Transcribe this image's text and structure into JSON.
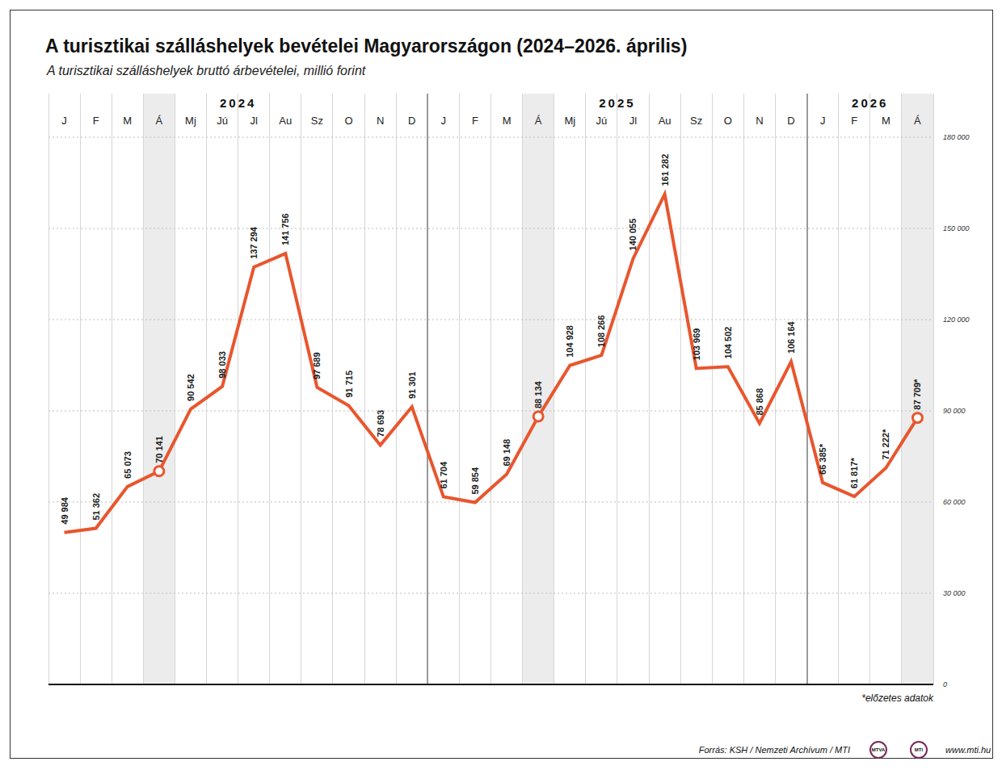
{
  "chart_data": {
    "type": "line",
    "title": "A turisztikai szálláshelyek bevételei Magyarországon (2024–2026. április)",
    "subtitle": "A turisztikai szálláshelyek bruttó árbevételei, millió forint",
    "categories": [
      "J",
      "F",
      "M",
      "Á",
      "Mj",
      "Jú",
      "Jl",
      "Au",
      "Sz",
      "O",
      "N",
      "D",
      "J",
      "F",
      "M",
      "Á",
      "Mj",
      "Jú",
      "Jl",
      "Au",
      "Sz",
      "O",
      "N",
      "D",
      "J",
      "F",
      "M",
      "Á"
    ],
    "groups": [
      {
        "name": "2024",
        "count": 12
      },
      {
        "name": "2025",
        "count": 12
      },
      {
        "name": "2026",
        "count": 4
      }
    ],
    "values": [
      49984,
      51362,
      65073,
      70141,
      90542,
      98033,
      137294,
      141756,
      97689,
      91715,
      78693,
      91301,
      61704,
      59854,
      69148,
      88134,
      104928,
      108266,
      140055,
      161282,
      103969,
      104502,
      85868,
      106164,
      66385,
      61817,
      71222,
      87709
    ],
    "value_labels": [
      "49 984",
      "51 362",
      "65 073",
      "70 141",
      "90 542",
      "98 033",
      "137 294",
      "141 756",
      "97 689",
      "91 715",
      "78 693",
      "91 301",
      "61 704",
      "59 854",
      "69 148",
      "88 134",
      "104 928",
      "108 266",
      "140 055",
      "161 282",
      "103 969",
      "104 502",
      "85 868",
      "106 164",
      "66 385*",
      "61 817*",
      "71 222*",
      "87 709*"
    ],
    "color": "#e8562e",
    "highlight": "Á",
    "ylim": [
      0,
      180000
    ],
    "yticks": [
      0,
      {
        "value": 30000,
        "label": "30 000"
      },
      {
        "value": 60000,
        "label": "60 000"
      },
      {
        "value": 90000,
        "label": "90 000"
      },
      {
        "value": 120000,
        "label": "120 000"
      },
      {
        "value": 150000,
        "label": "150 000"
      },
      {
        "value": 180000,
        "label": "180 000"
      }
    ],
    "grid": true,
    "data_labels": true,
    "note": "*előzetes adatok",
    "source": "Forrás: KSH / Nemzeti Archívum / MTI",
    "url": "www.mti.hu",
    "logos": [
      "MTVA",
      "MTI"
    ]
  }
}
